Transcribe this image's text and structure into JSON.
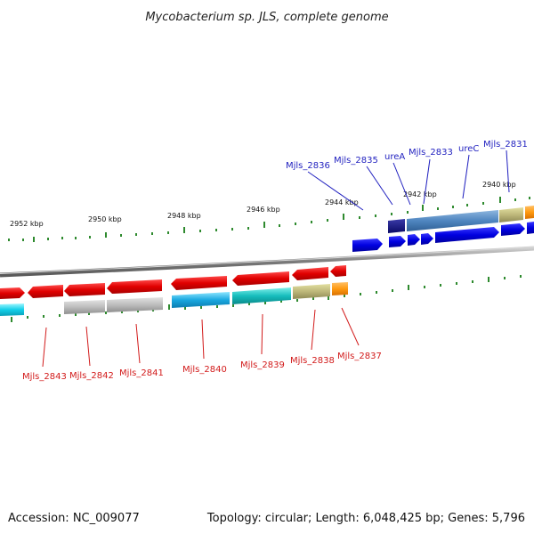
{
  "header": {
    "title": "Mycobacterium sp. JLS, complete genome"
  },
  "footer": {
    "accession": "Accession: NC_009077",
    "summary": "Topology: circular; Length: 6,048,425 bp; Genes: 5,796"
  },
  "ticks": [
    "2952 kbp",
    "2950 kbp",
    "2948 kbp",
    "2946 kbp",
    "2944 kbp",
    "2942 kbp",
    "2940 kbp"
  ],
  "top_labels": [
    "Mjls_2836",
    "Mjls_2835",
    "ureA",
    "Mjls_2833",
    "ureC",
    "Mjls_2831"
  ],
  "bottom_labels": [
    "Mjls_2843",
    "Mjls_2842",
    "Mjls_2841",
    "Mjls_2840",
    "Mjls_2839",
    "Mjls_2838",
    "Mjls_2837"
  ],
  "colors": {
    "forward_gene": "#1010e0",
    "reverse_gene": "#e01010",
    "backbone": "#8a8a8a",
    "tick": "#2e8a2e",
    "label_top": "#1f1fbf",
    "label_bottom": "#d21a1a"
  }
}
